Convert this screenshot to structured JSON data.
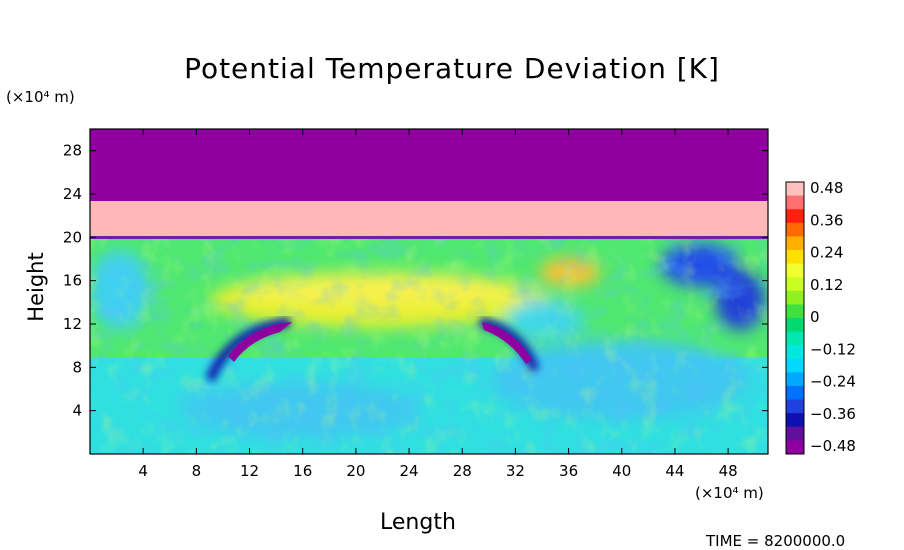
{
  "chart_data": {
    "type": "heatmap",
    "title": "Potential Temperature Deviation [K]",
    "xlabel": "Length",
    "ylabel": "Height",
    "x_unit": "(×10⁴ m)",
    "y_unit": "(×10⁴ m)",
    "xlim": [
      0,
      51
    ],
    "ylim": [
      0,
      30
    ],
    "x_ticks": [
      "4",
      "8",
      "12",
      "16",
      "20",
      "24",
      "28",
      "32",
      "36",
      "40",
      "44",
      "48"
    ],
    "y_ticks": [
      "4",
      "8",
      "12",
      "16",
      "20",
      "24",
      "28"
    ],
    "colorbar": {
      "min": -0.48,
      "max": 0.48,
      "labels": [
        "0.48",
        "0.36",
        "0.24",
        "0.12",
        "0",
        "−0.12",
        "−0.24",
        "−0.36",
        "−0.48"
      ],
      "colors": [
        "#ffc0c0",
        "#ff7070",
        "#ff2010",
        "#ff6a00",
        "#ffb000",
        "#ffe000",
        "#f0ff30",
        "#c8ff20",
        "#90f020",
        "#40e040",
        "#00d870",
        "#00e8b0",
        "#00e8e0",
        "#00d8ff",
        "#00a8ff",
        "#0070ff",
        "#2040e0",
        "#1010b0",
        "#60109a",
        "#9000a0"
      ]
    },
    "bands": [
      {
        "from": 23.2,
        "to": 30,
        "value": "below -0.48"
      },
      {
        "from": 20,
        "to": 23.2,
        "value": "above 0.48"
      }
    ]
  },
  "timestamp": "TIME = 8200000.0"
}
